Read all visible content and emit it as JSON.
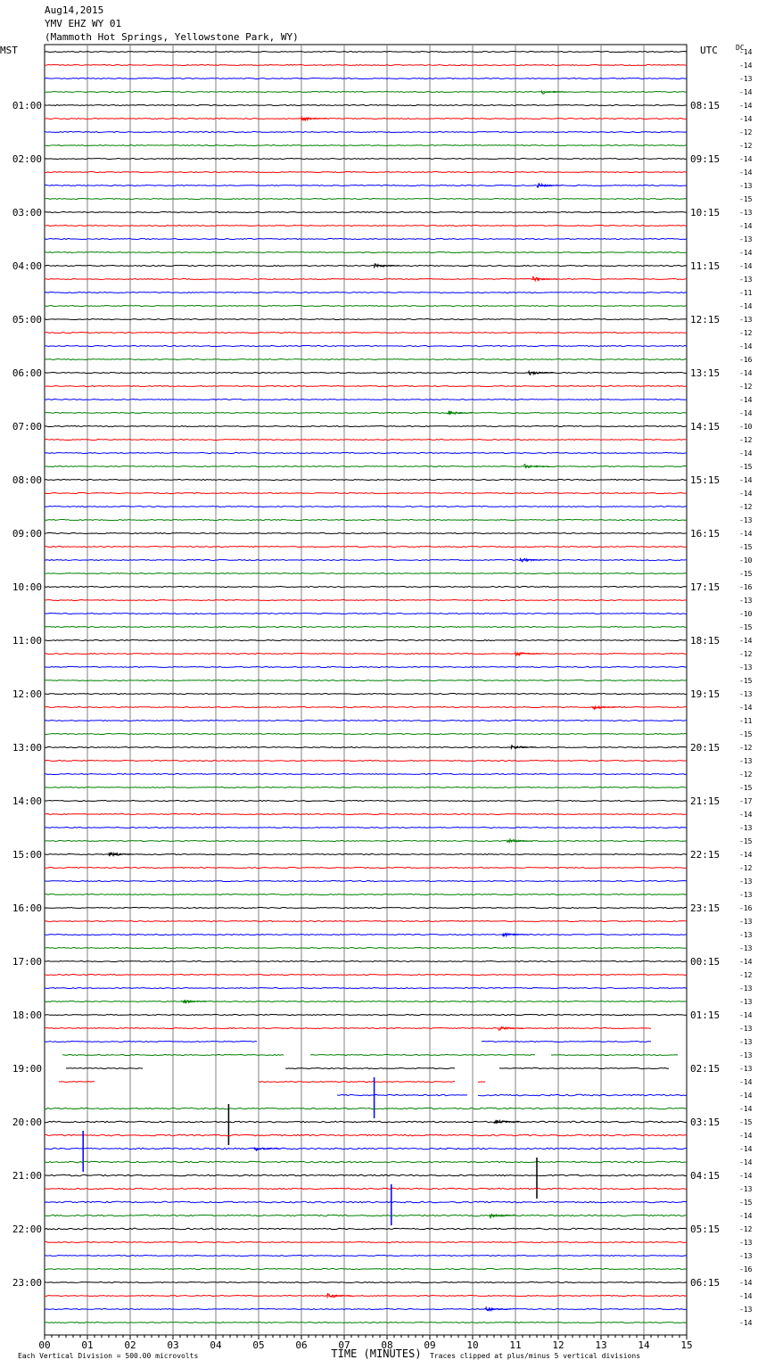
{
  "header": {
    "date": "Aug14,2015",
    "station": "YMV EHZ WY 01",
    "location": "(Mammoth Hot Springs, Yellowstone Park, WY)"
  },
  "chart_data": {
    "type": "line",
    "title": "",
    "left_axis_label": "MST",
    "right_axis_label": "UTC",
    "dc_label": "DC",
    "xlabel": "TIME (MINUTES)",
    "x_ticks": [
      "00",
      "01",
      "02",
      "03",
      "04",
      "05",
      "06",
      "07",
      "08",
      "09",
      "10",
      "11",
      "12",
      "13",
      "14",
      "15"
    ],
    "xlim": [
      0,
      15
    ],
    "trace_colors": [
      "#000000",
      "#ff0000",
      "#0000ff",
      "#008000"
    ],
    "left_hour_labels": [
      "01:00",
      "02:00",
      "03:00",
      "04:00",
      "05:00",
      "06:00",
      "07:00",
      "08:00",
      "09:00",
      "10:00",
      "11:00",
      "12:00",
      "13:00",
      "14:00",
      "15:00",
      "16:00",
      "17:00",
      "18:00",
      "19:00",
      "20:00",
      "21:00",
      "22:00",
      "23:00"
    ],
    "right_hour_labels": [
      "08:15",
      "09:15",
      "10:15",
      "11:15",
      "12:15",
      "13:15",
      "14:15",
      "15:15",
      "16:15",
      "17:15",
      "18:15",
      "19:15",
      "20:15",
      "21:15",
      "22:15",
      "23:15",
      "00:15",
      "01:15",
      "02:15",
      "03:15",
      "04:15",
      "05:15",
      "06:15"
    ],
    "dc_offsets": [
      "-14",
      "-14",
      "-13",
      "-14",
      "-14",
      "-14",
      "-12",
      "-12",
      "-14",
      "-14",
      "-13",
      "-15",
      "-13",
      "-14",
      "-13",
      "-14",
      "-14",
      "-13",
      "-11",
      "-14",
      "-13",
      "-12",
      "-14",
      "-16",
      "-14",
      "-12",
      "-14",
      "-14",
      "-10",
      "-12",
      "-14",
      "-15",
      "-14",
      "-14",
      "-12",
      "-13",
      "-14",
      "-15",
      "-10",
      "-15",
      "-16",
      "-13",
      "-10",
      "-15",
      "-14",
      "-12",
      "-13",
      "-15",
      "-13",
      "-14",
      "-11",
      "-15",
      "-12",
      "-13",
      "-12",
      "-15",
      "-17",
      "-14",
      "-13",
      "-15",
      "-14",
      "-12",
      "-13",
      "-13",
      "-16",
      "-13",
      "-13",
      "-13",
      "-14",
      "-12",
      "-13",
      "-13",
      "-14",
      "-13",
      "-13",
      "-13",
      "-13",
      "-14",
      "-14",
      "-14",
      "-15",
      "-14",
      "-14",
      "-14",
      "-14",
      "-13",
      "-15",
      "-14",
      "-12",
      "-13",
      "-13",
      "-16",
      "-14",
      "-14",
      "-13",
      "-14"
    ],
    "footer_left": "Each Vertical Division =  500.00 microvolts",
    "footer_right": "Traces clipped at plus/minus 5 vertical divisions"
  }
}
